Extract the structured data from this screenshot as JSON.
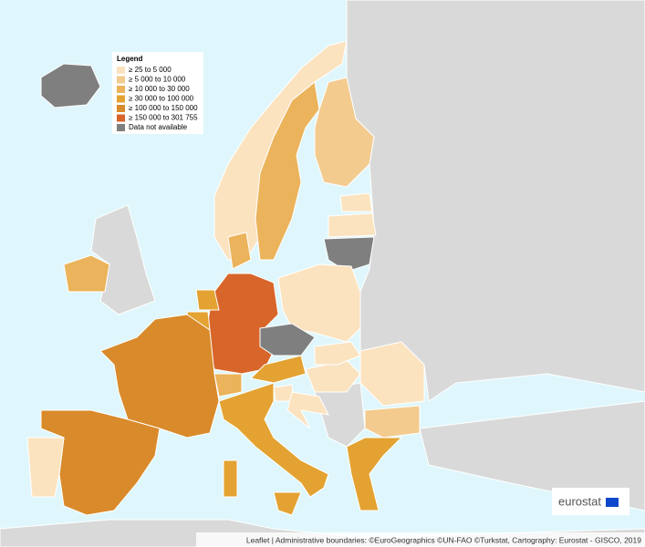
{
  "legend": {
    "title": "Legend",
    "items": [
      {
        "label": "≥ 25 to 5 000",
        "color": "#fbe3c0"
      },
      {
        "label": "≥ 5 000 to 10 000",
        "color": "#f3cb8f"
      },
      {
        "label": "≥ 10 000 to 30 000",
        "color": "#ebb35b"
      },
      {
        "label": "≥ 30 000 to 100 000",
        "color": "#e3a232"
      },
      {
        "label": "≥ 100 000 to 150 000",
        "color": "#d98a2b"
      },
      {
        "label": "≥ 150 000 to 301 755",
        "color": "#d8652a"
      },
      {
        "label": "Data not available",
        "color": "#7f7f7f"
      }
    ]
  },
  "attribution": "Leaflet | Administrative boundaries: ©EuroGeographics ©UN-FAO ©Turkstat, Cartography: Eurostat - GISCO, 2019",
  "logo": "eurostat"
}
